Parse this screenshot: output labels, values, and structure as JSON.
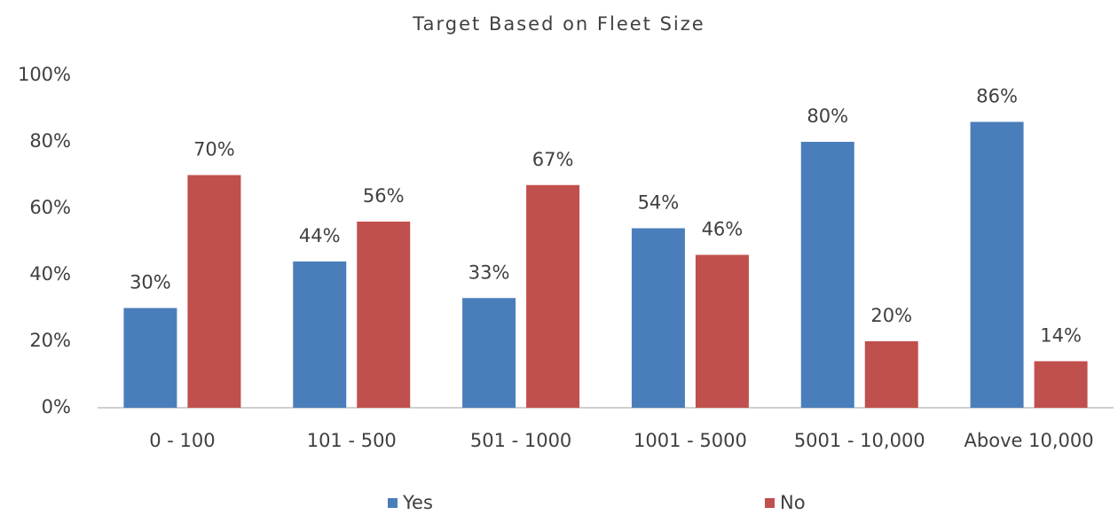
{
  "chart_data": {
    "type": "bar",
    "title": "Target Based on Fleet Size",
    "categories": [
      "0 - 100",
      "101 - 500",
      "501 - 1000",
      "1001 - 5000",
      "5001 - 10,000",
      "Above 10,000"
    ],
    "series": [
      {
        "name": "Yes",
        "color": "#4a7ebb",
        "values": [
          30,
          44,
          33,
          54,
          80,
          86
        ],
        "value_labels": [
          "30%",
          "44%",
          "33%",
          "54%",
          "80%",
          "86%"
        ]
      },
      {
        "name": "No",
        "color": "#c0504d",
        "values": [
          70,
          56,
          67,
          46,
          20,
          14
        ],
        "value_labels": [
          "70%",
          "56%",
          "67%",
          "46%",
          "20%",
          "14%"
        ]
      }
    ],
    "ylim": [
      0,
      100
    ],
    "yticks": [
      {
        "value": 0,
        "label": "0%"
      },
      {
        "value": 20,
        "label": "20%"
      },
      {
        "value": 40,
        "label": "40%"
      },
      {
        "value": 60,
        "label": "60%"
      },
      {
        "value": 80,
        "label": "80%"
      },
      {
        "value": 100,
        "label": "100%"
      }
    ],
    "grid": false,
    "legend": "bottom"
  }
}
